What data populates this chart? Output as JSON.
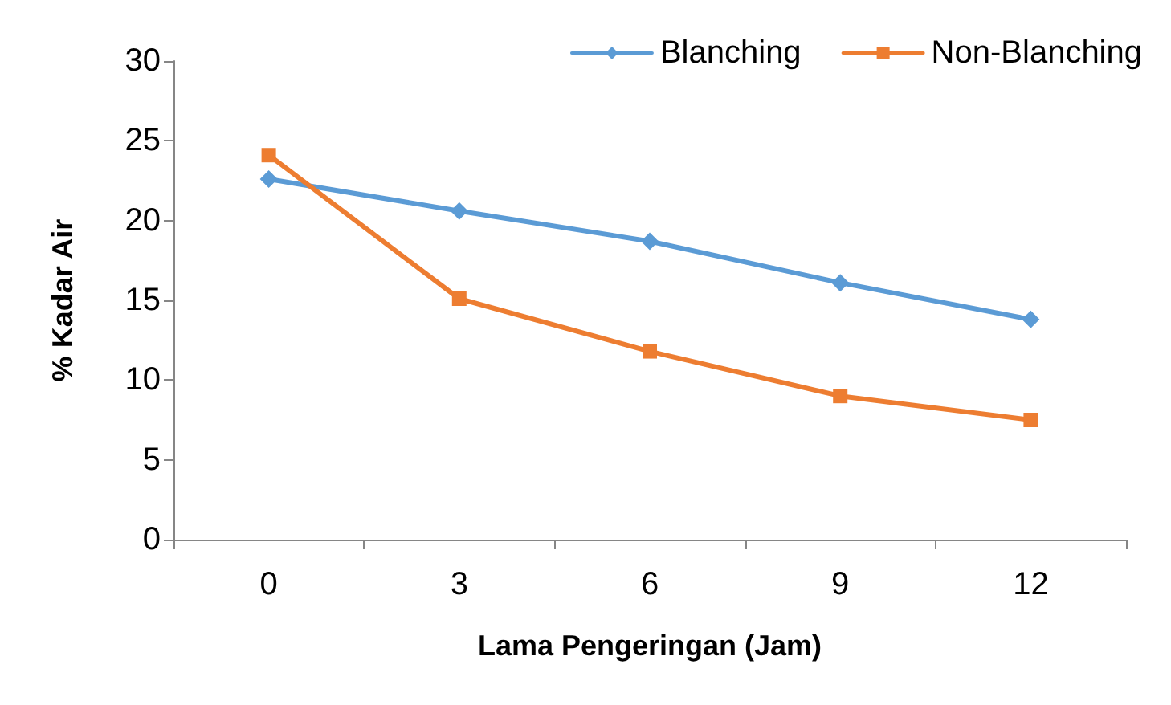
{
  "chart_data": {
    "type": "line",
    "xlabel": "Lama Pengeringan (Jam)",
    "ylabel": "% Kadar Air",
    "categories": [
      "0",
      "3",
      "6",
      "9",
      "12"
    ],
    "series": [
      {
        "name": "Blanching",
        "color": "#5b9bd5",
        "marker": "diamond",
        "values": [
          22.6,
          20.6,
          18.7,
          16.1,
          13.8
        ]
      },
      {
        "name": "Non-Blanching",
        "color": "#ed7d31",
        "marker": "square",
        "values": [
          24.1,
          15.1,
          11.8,
          9.0,
          7.5
        ]
      }
    ],
    "ylim": [
      0,
      30
    ],
    "yticks": [
      0,
      5,
      10,
      15,
      20,
      25,
      30
    ],
    "grid": false,
    "legend": "top right"
  }
}
